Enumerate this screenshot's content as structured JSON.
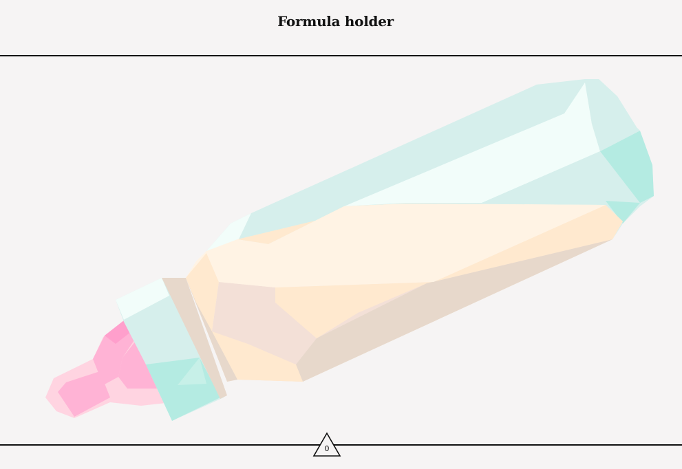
{
  "header": {
    "title": "Formula holder"
  },
  "artwork": {
    "subject": "baby-bottle",
    "colors": {
      "bottle_mint": "#d6efec",
      "bottle_light": "#f2fdfa",
      "bottle_teal": "#b4ebe2",
      "formula_cream": "#fff3e4",
      "formula_peach": "#ffe9cf",
      "formula_tan": "#e7d8cb",
      "formula_blush": "#f3e0d7",
      "nipple_pink": "#ffb3d5",
      "nipple_light": "#ffd4e1"
    }
  },
  "footer": {
    "badge_icon": "triangle-icon",
    "badge_value": "0"
  }
}
